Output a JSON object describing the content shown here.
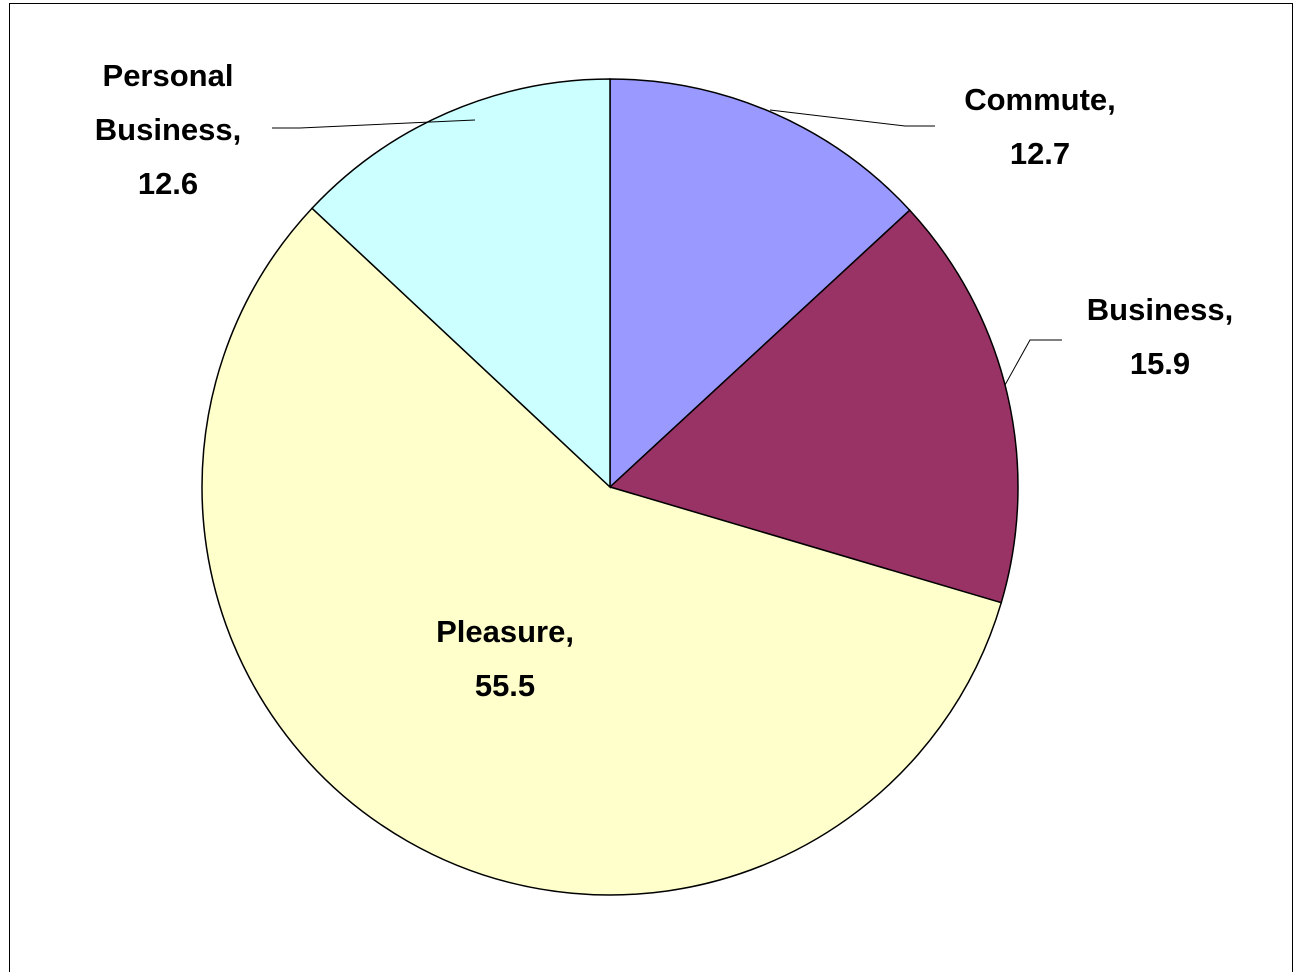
{
  "chart_data": {
    "type": "pie",
    "categories": [
      "Commute,",
      "Business,",
      "Pleasure,",
      "Personal Business,"
    ],
    "values": [
      12.7,
      15.9,
      55.5,
      12.6
    ],
    "colors": [
      "#9999ff",
      "#993366",
      "#ffffcc",
      "#ccffff"
    ]
  }
}
